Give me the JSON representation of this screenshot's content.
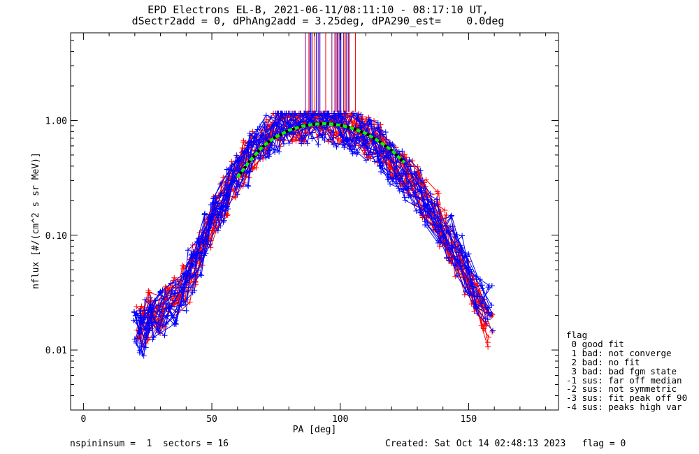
{
  "chart_data": {
    "type": "scatter",
    "title": "EPD Electrons EL-B, 2021-06-11/08:11:10 - 08:17:10 UT,",
    "subtitle": "dSectr2add = 0, dPhAng2add = 3.25deg, dPA290_est=    0.0deg",
    "xlabel": "PA [deg]",
    "ylabel": "nflux [#/(cm^2 s sr MeV)]",
    "xlim": [
      -5,
      185
    ],
    "ylim": [
      0.003,
      5.8
    ],
    "yscale": "log",
    "xticks": [
      0,
      50,
      100,
      150
    ],
    "yticks": [
      0.01,
      0.1,
      1.0
    ],
    "ytick_labels": [
      "0.01",
      "0.10",
      "1.00"
    ],
    "series": [
      {
        "color": "#ff0000",
        "x": [
          22,
          24,
          26,
          29,
          32,
          36,
          40,
          43,
          46,
          49,
          52,
          55,
          58,
          61,
          63,
          66,
          70,
          73,
          76,
          79,
          82,
          85,
          88,
          91,
          94,
          97,
          100,
          103,
          106,
          109,
          112,
          115,
          118,
          121,
          124,
          127,
          130,
          133,
          137,
          140,
          143,
          146,
          149,
          152,
          155,
          158
        ],
        "y": [
          0.018,
          0.016,
          0.022,
          0.019,
          0.024,
          0.03,
          0.037,
          0.055,
          0.08,
          0.11,
          0.16,
          0.22,
          0.3,
          0.4,
          0.45,
          0.55,
          0.68,
          0.8,
          0.88,
          0.92,
          0.96,
          0.98,
          1.0,
          1.0,
          0.98,
          0.96,
          0.92,
          0.88,
          0.82,
          0.76,
          0.7,
          0.63,
          0.55,
          0.47,
          0.4,
          0.33,
          0.27,
          0.21,
          0.16,
          0.12,
          0.085,
          0.06,
          0.042,
          0.03,
          0.022,
          0.016
        ],
        "scatter": 0.18
      },
      {
        "color": "#0000ff",
        "x": [
          21,
          23,
          25,
          28,
          31,
          35,
          39,
          42,
          45,
          48,
          51,
          54,
          57,
          60,
          63,
          66,
          69,
          72,
          75,
          78,
          81,
          84,
          87,
          90,
          93,
          96,
          99,
          102,
          105,
          108,
          111,
          114,
          117,
          120,
          123,
          126,
          130,
          134,
          138,
          142,
          146,
          150,
          154,
          158
        ],
        "y": [
          0.016,
          0.014,
          0.018,
          0.017,
          0.021,
          0.026,
          0.033,
          0.048,
          0.07,
          0.1,
          0.14,
          0.19,
          0.26,
          0.33,
          0.4,
          0.5,
          0.62,
          0.74,
          0.84,
          0.9,
          0.94,
          0.97,
          0.98,
          0.97,
          0.95,
          0.93,
          0.9,
          0.86,
          0.8,
          0.74,
          0.67,
          0.6,
          0.52,
          0.44,
          0.36,
          0.3,
          0.24,
          0.18,
          0.13,
          0.095,
          0.067,
          0.047,
          0.033,
          0.023
        ],
        "scatter": 0.2
      },
      {
        "color": "#00ff00",
        "dashed": true,
        "x": [
          60,
          65,
          70,
          75,
          80,
          85,
          90,
          95,
          100,
          105,
          110,
          115,
          120,
          125
        ],
        "y": [
          0.32,
          0.45,
          0.6,
          0.72,
          0.82,
          0.89,
          0.93,
          0.94,
          0.91,
          0.85,
          0.77,
          0.66,
          0.55,
          0.43
        ]
      }
    ],
    "fit_peak_lines": {
      "x_range": [
        84,
        106
      ],
      "y_range": [
        1.18,
        5.8
      ],
      "colors": [
        "#ff0000",
        "#0000ff",
        "#800080"
      ]
    }
  },
  "legend": {
    "title": "flag",
    "items": [
      " 0 good fit",
      " 1 bad: not converge",
      " 2 bad: no fit",
      " 3 bad: bad fgm state",
      "-1 sus: far off median",
      "-2 sus: not symmetric",
      "-3 sus: fit peak off 90",
      "-4 sus: peaks high var"
    ]
  },
  "footer": {
    "left": "nspininsum =  1  sectors = 16",
    "right": "Created: Sat Oct 14 02:48:13 2023   flag = 0"
  }
}
